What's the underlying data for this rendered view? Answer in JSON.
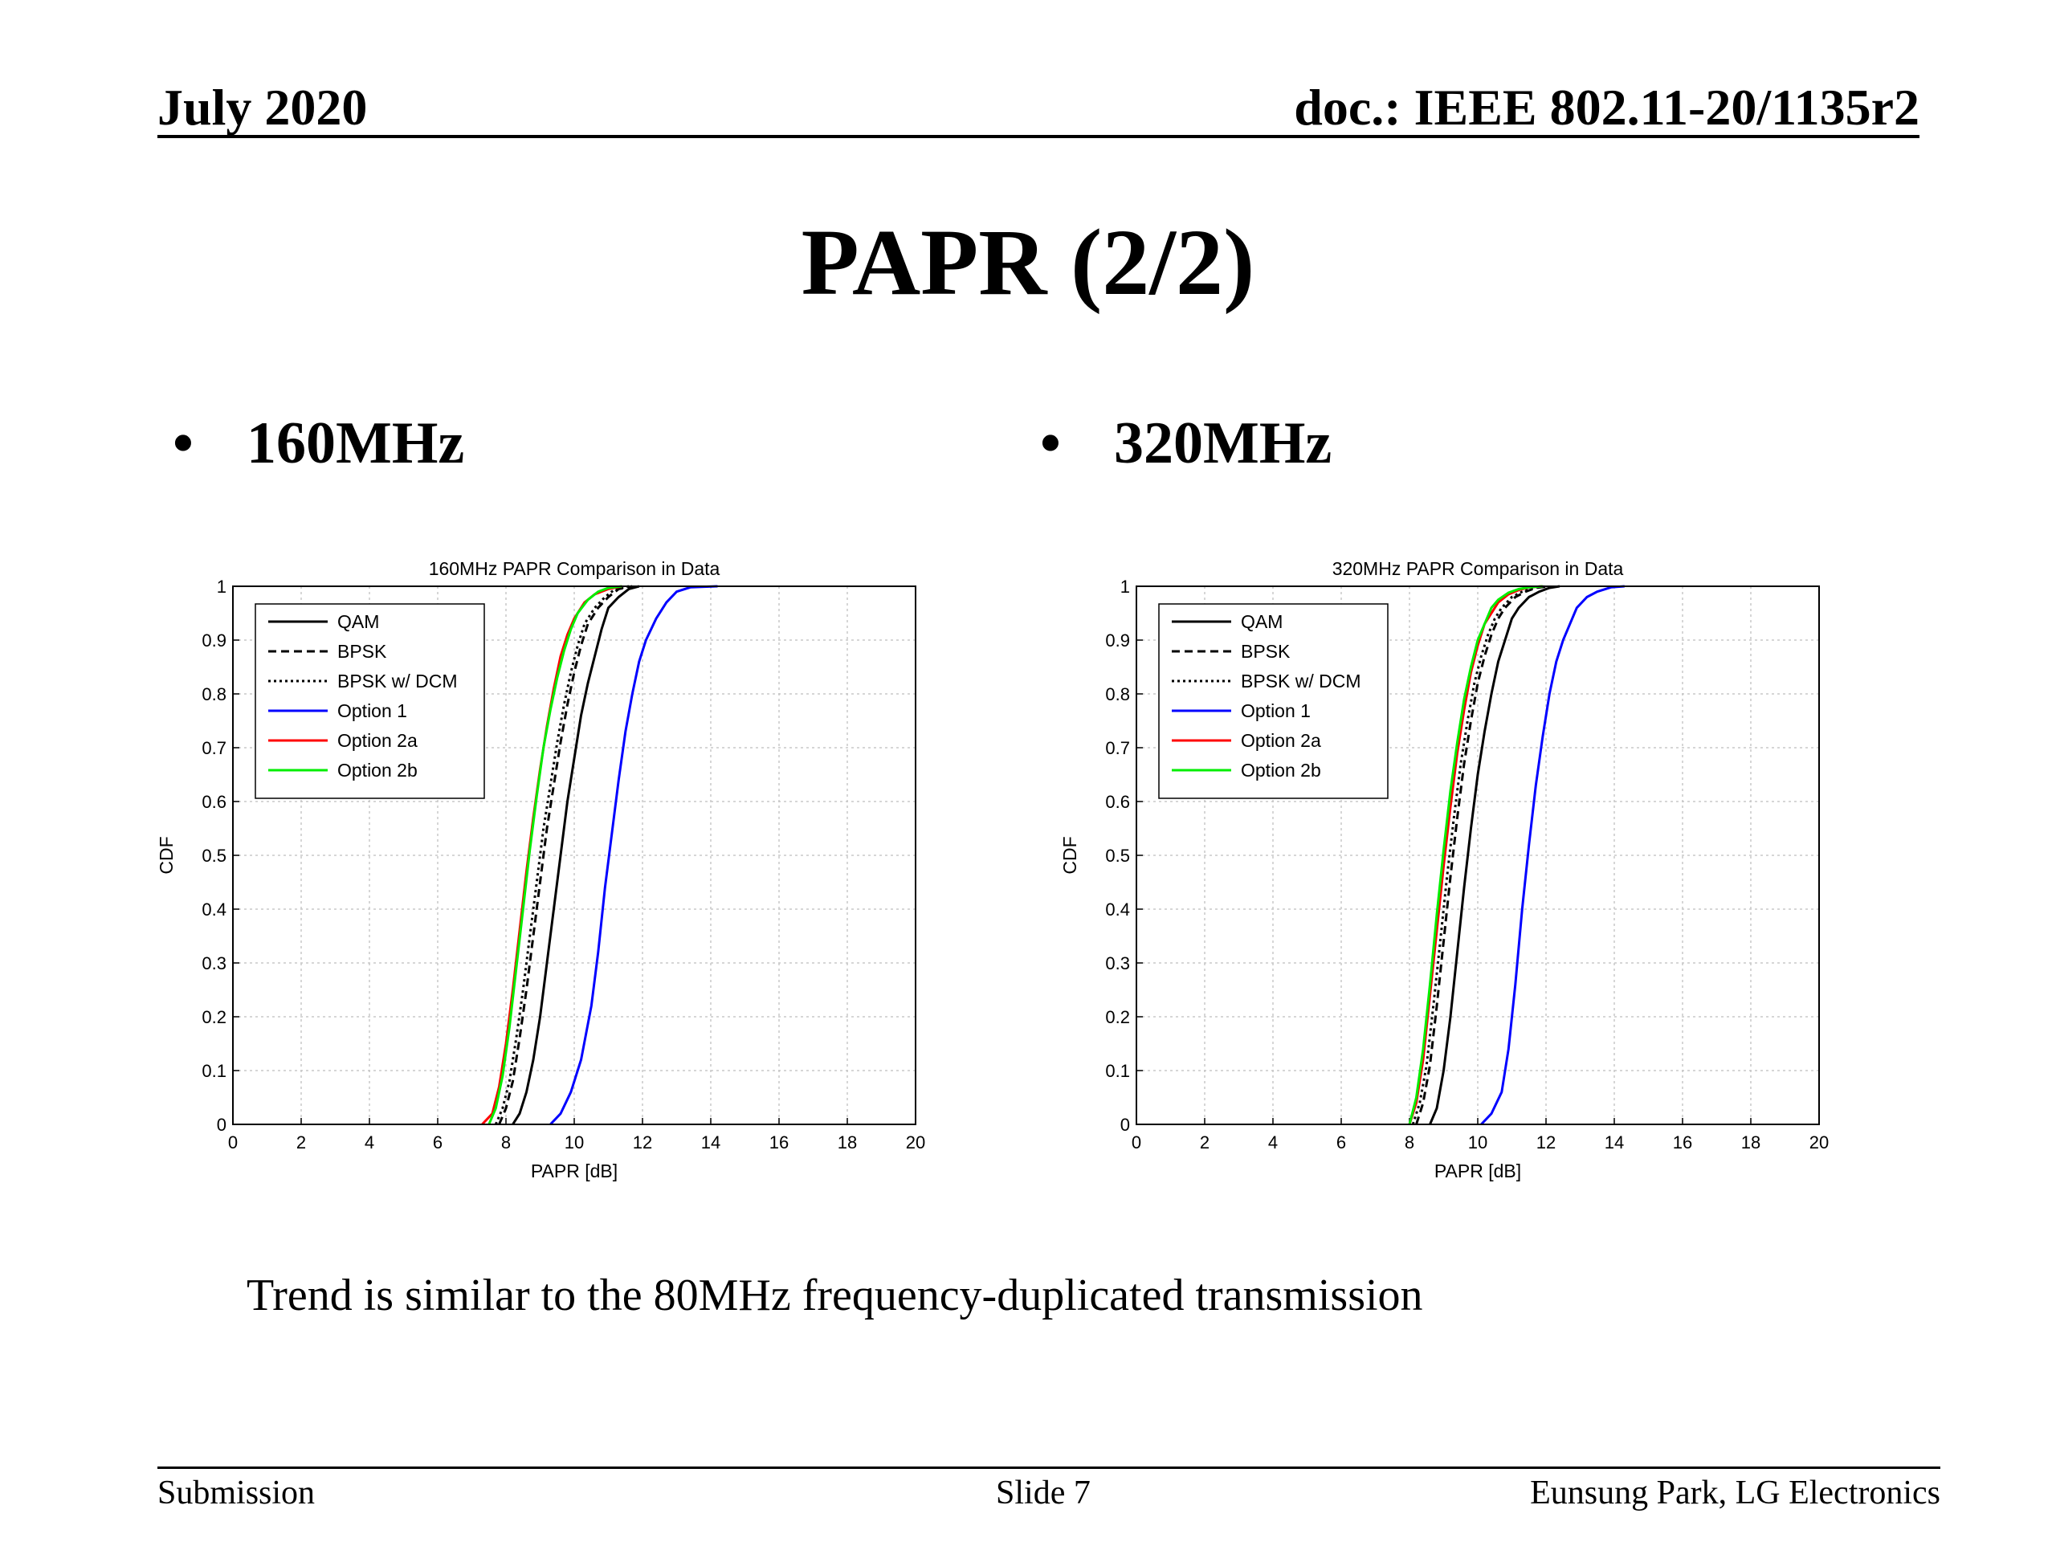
{
  "header": {
    "date": "July 2020",
    "doc_id": "doc.: IEEE 802.11-20/1135r2"
  },
  "title": "PAPR (2/2)",
  "bullets": [
    {
      "marker": "•",
      "label": "160MHz"
    },
    {
      "marker": "•",
      "label": "320MHz"
    }
  ],
  "note": "Trend is similar to the 80MHz frequency-duplicated transmission",
  "footer": {
    "left": "Submission",
    "center": "Slide 7",
    "right": "Eunsung Park, LG Electronics"
  },
  "chart_data": [
    {
      "type": "line",
      "title": "160MHz PAPR Comparison in Data",
      "xlabel": "PAPR [dB]",
      "ylabel": "CDF",
      "xlim": [
        0,
        20
      ],
      "ylim": [
        0,
        1
      ],
      "xticks": [
        "0",
        "2",
        "4",
        "6",
        "8",
        "10",
        "12",
        "14",
        "16",
        "18",
        "20"
      ],
      "yticks": [
        "0",
        "0.1",
        "0.2",
        "0.3",
        "0.4",
        "0.5",
        "0.6",
        "0.7",
        "0.8",
        "0.9",
        "1"
      ],
      "grid": true,
      "legend_position": "top-left",
      "series": [
        {
          "name": "QAM",
          "color": "#000000",
          "style": "solid",
          "x": [
            8.2,
            8.4,
            8.6,
            8.8,
            9.0,
            9.2,
            9.4,
            9.6,
            9.8,
            10.0,
            10.2,
            10.4,
            10.6,
            10.8,
            11.0,
            11.3,
            11.6,
            11.9
          ],
          "y": [
            0,
            0.02,
            0.06,
            0.12,
            0.2,
            0.3,
            0.4,
            0.5,
            0.6,
            0.68,
            0.76,
            0.82,
            0.87,
            0.92,
            0.96,
            0.98,
            0.995,
            1
          ]
        },
        {
          "name": "BPSK",
          "color": "#000000",
          "style": "dashed",
          "x": [
            7.8,
            8.0,
            8.2,
            8.4,
            8.6,
            8.8,
            9.0,
            9.2,
            9.4,
            9.6,
            9.8,
            10.0,
            10.2,
            10.4,
            10.7,
            11.0,
            11.3,
            11.7
          ],
          "y": [
            0,
            0.03,
            0.08,
            0.16,
            0.25,
            0.35,
            0.45,
            0.55,
            0.63,
            0.71,
            0.78,
            0.84,
            0.89,
            0.93,
            0.96,
            0.98,
            0.995,
            1
          ]
        },
        {
          "name": "BPSK w/ DCM",
          "color": "#000000",
          "style": "dotted",
          "x": [
            7.7,
            7.9,
            8.1,
            8.3,
            8.5,
            8.7,
            8.9,
            9.1,
            9.3,
            9.5,
            9.7,
            9.9,
            10.1,
            10.3,
            10.6,
            10.9,
            11.2,
            11.6
          ],
          "y": [
            0,
            0.03,
            0.08,
            0.16,
            0.25,
            0.35,
            0.45,
            0.55,
            0.63,
            0.71,
            0.78,
            0.84,
            0.89,
            0.93,
            0.96,
            0.98,
            0.995,
            1
          ]
        },
        {
          "name": "Option 1",
          "color": "#0000ff",
          "style": "solid",
          "x": [
            9.3,
            9.6,
            9.9,
            10.2,
            10.5,
            10.7,
            10.9,
            11.1,
            11.3,
            11.5,
            11.7,
            11.9,
            12.1,
            12.4,
            12.7,
            13.0,
            13.4,
            14.2
          ],
          "y": [
            0,
            0.02,
            0.06,
            0.12,
            0.22,
            0.32,
            0.44,
            0.54,
            0.64,
            0.73,
            0.8,
            0.86,
            0.9,
            0.94,
            0.97,
            0.99,
            0.998,
            1
          ]
        },
        {
          "name": "Option 2a",
          "color": "#ff0000",
          "style": "solid",
          "x": [
            7.3,
            7.6,
            7.8,
            8.0,
            8.2,
            8.4,
            8.6,
            8.8,
            9.0,
            9.2,
            9.4,
            9.6,
            9.8,
            10.0,
            10.3,
            10.6,
            11.0,
            11.4
          ],
          "y": [
            0,
            0.02,
            0.07,
            0.15,
            0.25,
            0.36,
            0.47,
            0.57,
            0.66,
            0.74,
            0.81,
            0.87,
            0.91,
            0.94,
            0.97,
            0.985,
            0.995,
            1
          ]
        },
        {
          "name": "Option 2b",
          "color": "#00ee00",
          "style": "solid",
          "x": [
            7.5,
            7.7,
            7.9,
            8.1,
            8.3,
            8.5,
            8.7,
            8.9,
            9.1,
            9.3,
            9.5,
            9.7,
            9.9,
            10.1,
            10.4,
            10.7,
            11.0,
            11.4
          ],
          "y": [
            0,
            0.03,
            0.09,
            0.18,
            0.29,
            0.4,
            0.51,
            0.61,
            0.7,
            0.77,
            0.83,
            0.88,
            0.92,
            0.95,
            0.975,
            0.99,
            0.997,
            1
          ]
        }
      ]
    },
    {
      "type": "line",
      "title": "320MHz PAPR Comparison in Data",
      "xlabel": "PAPR [dB]",
      "ylabel": "CDF",
      "xlim": [
        0,
        20
      ],
      "ylim": [
        0,
        1
      ],
      "xticks": [
        "0",
        "2",
        "4",
        "6",
        "8",
        "10",
        "12",
        "14",
        "16",
        "18",
        "20"
      ],
      "yticks": [
        "0",
        "0.1",
        "0.2",
        "0.3",
        "0.4",
        "0.5",
        "0.6",
        "0.7",
        "0.8",
        "0.9",
        "1"
      ],
      "grid": true,
      "legend_position": "top-left",
      "series": [
        {
          "name": "QAM",
          "color": "#000000",
          "style": "solid",
          "x": [
            8.6,
            8.8,
            9.0,
            9.2,
            9.4,
            9.6,
            9.8,
            10.0,
            10.2,
            10.4,
            10.6,
            10.8,
            11.0,
            11.2,
            11.5,
            11.8,
            12.1,
            12.4
          ],
          "y": [
            0,
            0.03,
            0.1,
            0.2,
            0.32,
            0.44,
            0.55,
            0.65,
            0.73,
            0.8,
            0.86,
            0.9,
            0.94,
            0.96,
            0.98,
            0.99,
            0.997,
            1
          ]
        },
        {
          "name": "BPSK",
          "color": "#000000",
          "style": "dashed",
          "x": [
            8.2,
            8.4,
            8.6,
            8.8,
            9.0,
            9.2,
            9.4,
            9.6,
            9.8,
            10.0,
            10.2,
            10.4,
            10.6,
            10.8,
            11.1,
            11.4,
            11.7,
            12.1
          ],
          "y": [
            0,
            0.04,
            0.11,
            0.22,
            0.34,
            0.46,
            0.57,
            0.67,
            0.75,
            0.82,
            0.87,
            0.91,
            0.94,
            0.96,
            0.98,
            0.99,
            0.997,
            1
          ]
        },
        {
          "name": "BPSK w/ DCM",
          "color": "#000000",
          "style": "dotted",
          "x": [
            8.1,
            8.3,
            8.5,
            8.7,
            8.9,
            9.1,
            9.3,
            9.5,
            9.7,
            9.9,
            10.1,
            10.3,
            10.5,
            10.7,
            11.0,
            11.3,
            11.6,
            12.0
          ],
          "y": [
            0,
            0.04,
            0.11,
            0.22,
            0.34,
            0.46,
            0.57,
            0.67,
            0.75,
            0.82,
            0.87,
            0.91,
            0.94,
            0.96,
            0.98,
            0.99,
            0.997,
            1
          ]
        },
        {
          "name": "Option 1",
          "color": "#0000ff",
          "style": "solid",
          "x": [
            10.1,
            10.4,
            10.7,
            10.9,
            11.1,
            11.3,
            11.5,
            11.7,
            11.9,
            12.1,
            12.3,
            12.5,
            12.7,
            12.9,
            13.2,
            13.5,
            13.9,
            14.3
          ],
          "y": [
            0,
            0.02,
            0.06,
            0.14,
            0.26,
            0.4,
            0.52,
            0.63,
            0.72,
            0.8,
            0.86,
            0.9,
            0.93,
            0.96,
            0.98,
            0.99,
            0.998,
            1
          ]
        },
        {
          "name": "Option 2a",
          "color": "#ff0000",
          "style": "solid",
          "x": [
            8.0,
            8.2,
            8.4,
            8.6,
            8.8,
            9.0,
            9.2,
            9.4,
            9.6,
            9.8,
            10.0,
            10.2,
            10.4,
            10.6,
            10.9,
            11.2,
            11.5,
            11.9
          ],
          "y": [
            0,
            0.04,
            0.12,
            0.24,
            0.36,
            0.48,
            0.59,
            0.69,
            0.77,
            0.84,
            0.89,
            0.93,
            0.95,
            0.97,
            0.985,
            0.993,
            0.998,
            1
          ]
        },
        {
          "name": "Option 2b",
          "color": "#00ee00",
          "style": "solid",
          "x": [
            8.0,
            8.2,
            8.4,
            8.6,
            8.8,
            9.0,
            9.2,
            9.4,
            9.6,
            9.8,
            10.0,
            10.2,
            10.4,
            10.6,
            10.9,
            11.2,
            11.5,
            11.9
          ],
          "y": [
            0,
            0.05,
            0.14,
            0.26,
            0.39,
            0.51,
            0.62,
            0.71,
            0.79,
            0.85,
            0.9,
            0.93,
            0.96,
            0.975,
            0.988,
            0.995,
            0.998,
            1
          ]
        }
      ]
    }
  ]
}
